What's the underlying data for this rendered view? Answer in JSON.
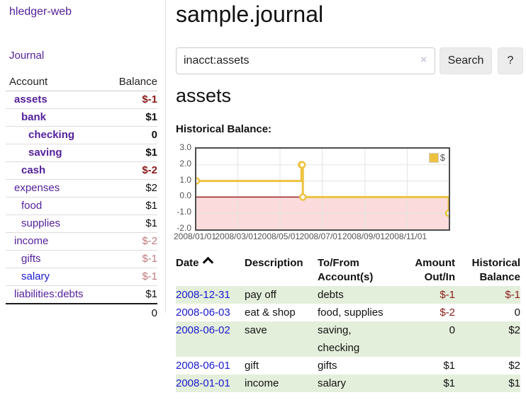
{
  "app": {
    "title": "hledger-web",
    "nav_journal": "Journal"
  },
  "colors": {
    "link_purple": "#54219b",
    "link_blue": "#1a1ace",
    "negative_strong": "#8c1a1a",
    "negative_dim": "#c1797d",
    "row_stripe_green": "#e4efdb",
    "button_bg": "#ececec",
    "chart_axis_text": "#545454"
  },
  "sidebar": {
    "accounts_header": {
      "account": "Account",
      "balance": "Balance"
    },
    "accounts": [
      {
        "name": "assets",
        "indent": 0,
        "bold": true,
        "balance": "$-1",
        "balance_style": "neg"
      },
      {
        "name": "bank",
        "indent": 1,
        "bold": true,
        "balance": "$1",
        "balance_style": "pos"
      },
      {
        "name": "checking",
        "indent": 2,
        "bold": true,
        "balance": "0",
        "balance_style": "pos"
      },
      {
        "name": "saving",
        "indent": 2,
        "bold": true,
        "balance": "$1",
        "balance_style": "pos"
      },
      {
        "name": "cash",
        "indent": 1,
        "bold": true,
        "balance": "$-2",
        "balance_style": "neg"
      },
      {
        "name": "expenses",
        "indent": 0,
        "bold": false,
        "balance": "$2",
        "balance_style": "pos"
      },
      {
        "name": "food",
        "indent": 1,
        "bold": false,
        "balance": "$1",
        "balance_style": "pos"
      },
      {
        "name": "supplies",
        "indent": 1,
        "bold": false,
        "balance": "$1",
        "balance_style": "pos"
      },
      {
        "name": "income",
        "indent": 0,
        "bold": false,
        "balance": "$-2",
        "balance_style": "neg-dim"
      },
      {
        "name": "gifts",
        "indent": 1,
        "bold": false,
        "balance": "$-1",
        "balance_style": "neg-dim"
      },
      {
        "name": "salary",
        "indent": 1,
        "bold": false,
        "balance": "$-1",
        "balance_style": "neg-dim",
        "link": "blue"
      },
      {
        "name": "liabilities:debts",
        "indent": 0,
        "bold": false,
        "balance": "$1",
        "balance_style": "pos"
      }
    ],
    "total": "0"
  },
  "header": {
    "title": "sample.journal"
  },
  "search": {
    "value": "inacct:assets",
    "clear_icon": "×",
    "button": "Search",
    "help_button": "?"
  },
  "account_page": {
    "heading": "assets",
    "chart_label": "Historical Balance:"
  },
  "chart_data": {
    "type": "line",
    "title": "Historical Balance:",
    "series": [
      {
        "name": "$",
        "color": "#edc240",
        "steps": true,
        "points": [
          {
            "x": "2008-01-01",
            "y": 1
          },
          {
            "x": "2008-06-01",
            "y": 2
          },
          {
            "x": "2008-06-02",
            "y": 2
          },
          {
            "x": "2008-06-03",
            "y": 0
          },
          {
            "x": "2008-12-31",
            "y": -1
          }
        ]
      }
    ],
    "x_range": [
      "2008-01-01",
      "2008-12-31"
    ],
    "ylim": [
      -2,
      3
    ],
    "y_ticks": [
      3,
      2,
      1,
      0,
      -1,
      -2
    ],
    "y_tick_labels": [
      "3.0",
      "2.0",
      "1.0",
      "0.0",
      "-1.0",
      "-2.0"
    ],
    "x_tick_labels": [
      "2008/01/01",
      "2008/03/01",
      "2008/05/01",
      "2008/07/01",
      "2008/09/01",
      "2008/11/01"
    ],
    "grid": true,
    "legend_position": "top-right",
    "negative_fill": "#fbdbdb",
    "zero_line_color": "#9b1c1c"
  },
  "register": {
    "headers": {
      "date": "Date",
      "description": "Description",
      "accounts": "To/From Account(s)",
      "amount": "Amount Out/In",
      "balance": "Historical Balance"
    },
    "rows": [
      {
        "date": "2008-12-31",
        "description": "pay off",
        "accounts": "debts",
        "amount": "$-1",
        "amount_neg": true,
        "balance": "$-1",
        "balance_neg": true,
        "stripe": true
      },
      {
        "date": "2008-06-03",
        "description": "eat & shop",
        "accounts": "food, supplies",
        "amount": "$-2",
        "amount_neg": true,
        "balance": "0",
        "balance_neg": false,
        "stripe": false
      },
      {
        "date": "2008-06-02",
        "description": "save",
        "accounts": "saving, checking",
        "amount": "0",
        "amount_neg": false,
        "balance": "$2",
        "balance_neg": false,
        "stripe": true
      },
      {
        "date": "2008-06-01",
        "description": "gift",
        "accounts": "gifts",
        "amount": "$1",
        "amount_neg": false,
        "balance": "$2",
        "balance_neg": false,
        "stripe": false
      },
      {
        "date": "2008-01-01",
        "description": "income",
        "accounts": "salary",
        "amount": "$1",
        "amount_neg": false,
        "balance": "$1",
        "balance_neg": false,
        "stripe": true
      }
    ]
  }
}
